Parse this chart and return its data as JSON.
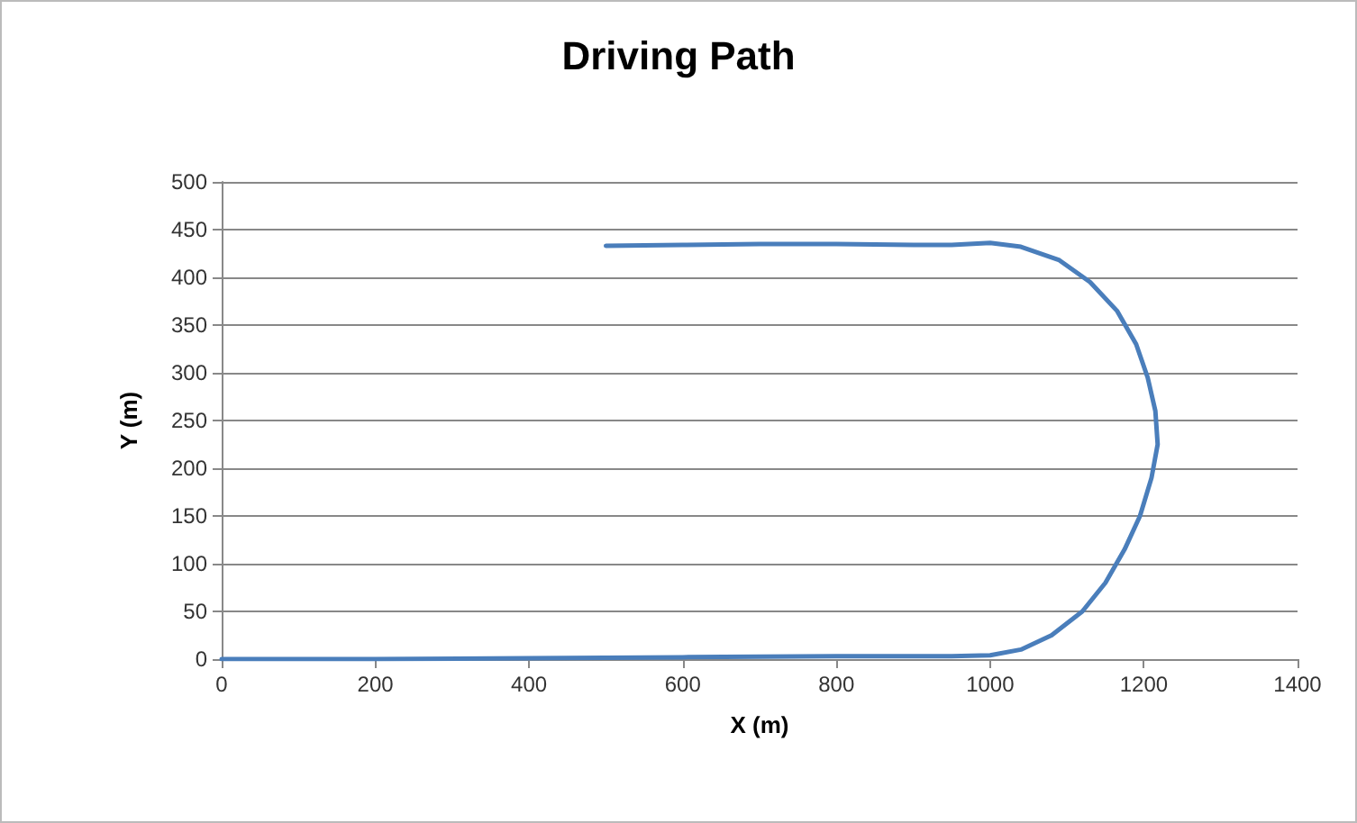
{
  "chart_data": {
    "type": "line",
    "title": "Driving Path",
    "xlabel": "X (m)",
    "ylabel": "Y (m)",
    "series": [
      {
        "color": "#4a7ebb",
        "x": [
          0,
          200,
          400,
          600,
          800,
          950,
          1000,
          1040,
          1080,
          1120,
          1150,
          1175,
          1195,
          1210,
          1218,
          1215,
          1205,
          1190,
          1165,
          1130,
          1090,
          1040,
          1000,
          950,
          900,
          800,
          700,
          600,
          500
        ],
        "values": [
          0,
          0,
          1,
          2,
          3,
          3,
          4,
          10,
          25,
          50,
          80,
          115,
          150,
          190,
          225,
          260,
          295,
          330,
          365,
          395,
          418,
          432,
          436,
          434,
          434,
          435,
          435,
          434,
          433
        ]
      }
    ],
    "xlim": [
      0,
      1400
    ],
    "xticks": [
      0,
      200,
      400,
      600,
      800,
      1000,
      1200,
      1400
    ],
    "ylim": [
      0,
      500
    ],
    "yticks": [
      0,
      50,
      100,
      150,
      200,
      250,
      300,
      350,
      400,
      450,
      500
    ],
    "grid": "y",
    "marker": "none",
    "line_style": "solid"
  }
}
